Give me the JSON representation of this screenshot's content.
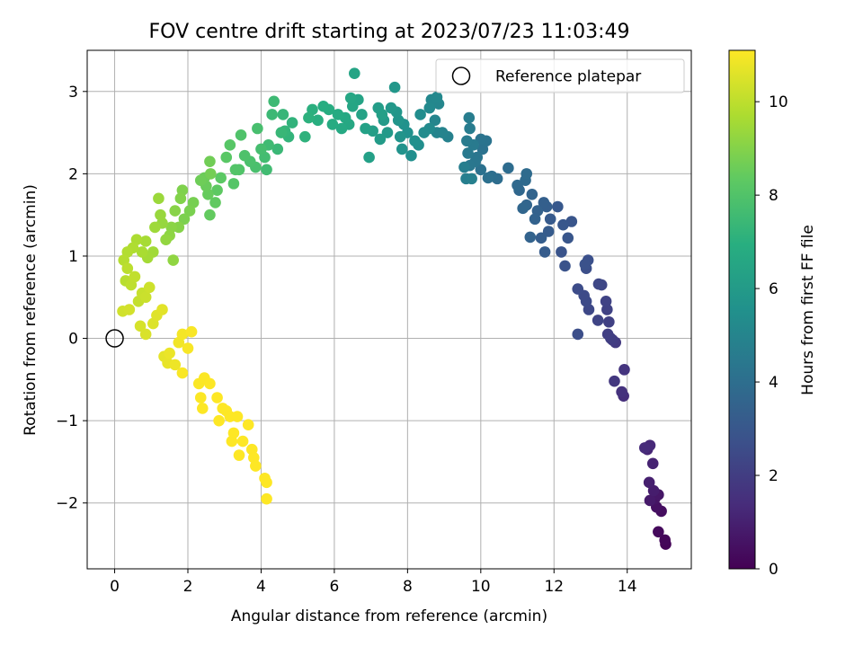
{
  "chart_data": {
    "type": "scatter",
    "title": "FOV centre drift starting at 2023/07/23 11:03:49",
    "xlabel": "Angular distance from reference (arcmin)",
    "ylabel": "Rotation from reference (arcmin)",
    "xlim": [
      -0.75,
      15.75
    ],
    "ylim": [
      -2.8,
      3.5
    ],
    "xticks": [
      0,
      2,
      4,
      6,
      8,
      10,
      12,
      14
    ],
    "yticks": [
      -2,
      -1,
      0,
      1,
      2,
      3
    ],
    "xtick_labels": [
      "0",
      "2",
      "4",
      "6",
      "8",
      "10",
      "12",
      "14"
    ],
    "ytick_labels": [
      "−2",
      "−1",
      "0",
      "1",
      "2",
      "3"
    ],
    "grid": true,
    "colormap": "viridis",
    "colorbar": {
      "label": "Hours from first FF file",
      "range": [
        0,
        11.1
      ],
      "ticks": [
        0,
        2,
        4,
        6,
        8,
        10
      ],
      "tick_labels": [
        "0",
        "2",
        "4",
        "6",
        "8",
        "10"
      ]
    },
    "legend": {
      "position": "top-right",
      "entries": [
        {
          "name": "Reference platepar",
          "marker": "open-circle"
        }
      ]
    },
    "reference_point": {
      "x": 0,
      "y": 0
    },
    "series": [
      {
        "points": [
          [
            15.05,
            -2.5,
            0.1
          ],
          [
            15.03,
            -2.45,
            0.2
          ],
          [
            14.85,
            -2.35,
            0.3
          ],
          [
            14.93,
            -2.1,
            0.4
          ],
          [
            14.8,
            -2.05,
            0.5
          ],
          [
            14.75,
            -1.95,
            0.6
          ],
          [
            14.85,
            -1.9,
            0.7
          ],
          [
            14.62,
            -1.97,
            0.8
          ],
          [
            14.72,
            -1.85,
            0.9
          ],
          [
            14.6,
            -1.75,
            1.0
          ],
          [
            14.7,
            -1.52,
            1.1
          ],
          [
            14.55,
            -1.35,
            1.2
          ],
          [
            14.62,
            -1.3,
            1.3
          ],
          [
            14.48,
            -1.33,
            1.4
          ],
          [
            13.9,
            -0.7,
            1.5
          ],
          [
            13.85,
            -0.65,
            1.6
          ],
          [
            13.92,
            -0.38,
            1.7
          ],
          [
            13.65,
            -0.52,
            1.8
          ],
          [
            13.68,
            -0.05,
            1.9
          ],
          [
            13.6,
            -0.02,
            2.0
          ],
          [
            13.55,
            0.0,
            2.05
          ],
          [
            13.47,
            0.05,
            2.1
          ],
          [
            13.5,
            0.2,
            2.15
          ],
          [
            13.45,
            0.35,
            2.2
          ],
          [
            13.42,
            0.45,
            2.25
          ],
          [
            13.2,
            0.22,
            2.3
          ],
          [
            13.3,
            0.65,
            2.35
          ],
          [
            13.22,
            0.66,
            2.4
          ],
          [
            12.95,
            0.35,
            2.45
          ],
          [
            12.88,
            0.45,
            2.5
          ],
          [
            12.82,
            0.52,
            2.55
          ],
          [
            12.65,
            0.6,
            2.6
          ],
          [
            12.65,
            0.05,
            2.65
          ],
          [
            12.88,
            0.85,
            2.7
          ],
          [
            12.93,
            0.95,
            2.75
          ],
          [
            12.85,
            0.9,
            2.8
          ],
          [
            12.3,
            0.88,
            2.85
          ],
          [
            12.2,
            1.05,
            2.9
          ],
          [
            12.48,
            1.42,
            2.95
          ],
          [
            12.38,
            1.22,
            3.0
          ],
          [
            12.25,
            1.38,
            3.05
          ],
          [
            12.1,
            1.6,
            3.1
          ],
          [
            11.9,
            1.45,
            3.15
          ],
          [
            11.85,
            1.3,
            3.2
          ],
          [
            11.75,
            1.05,
            3.25
          ],
          [
            11.65,
            1.22,
            3.3
          ],
          [
            11.8,
            1.6,
            3.35
          ],
          [
            11.72,
            1.65,
            3.4
          ],
          [
            11.55,
            1.55,
            3.45
          ],
          [
            11.48,
            1.45,
            3.5
          ],
          [
            11.35,
            1.23,
            3.55
          ],
          [
            11.4,
            1.75,
            3.6
          ],
          [
            11.25,
            1.62,
            3.65
          ],
          [
            11.15,
            1.58,
            3.7
          ],
          [
            11.05,
            1.8,
            3.75
          ],
          [
            11.0,
            1.86,
            3.8
          ],
          [
            11.22,
            1.92,
            3.85
          ],
          [
            11.25,
            2.0,
            3.9
          ],
          [
            10.75,
            2.07,
            3.95
          ],
          [
            10.45,
            1.94,
            4.0
          ],
          [
            10.3,
            1.97,
            4.05
          ],
          [
            10.2,
            1.95,
            4.1
          ],
          [
            10.0,
            2.05,
            4.15
          ],
          [
            10.05,
            2.3,
            4.2
          ],
          [
            10.15,
            2.4,
            4.25
          ],
          [
            10.0,
            2.42,
            4.3
          ],
          [
            9.9,
            2.2,
            4.35
          ],
          [
            9.85,
            2.15,
            4.4
          ],
          [
            9.7,
            2.1,
            4.45
          ],
          [
            9.65,
            2.25,
            4.5
          ],
          [
            9.8,
            2.35,
            4.55
          ],
          [
            9.62,
            2.4,
            4.6
          ],
          [
            9.7,
            2.55,
            4.65
          ],
          [
            9.68,
            2.68,
            4.7
          ],
          [
            9.55,
            2.08,
            4.75
          ],
          [
            9.6,
            1.94,
            4.8
          ],
          [
            9.75,
            1.94,
            4.85
          ],
          [
            9.1,
            2.45,
            4.9
          ],
          [
            8.95,
            2.5,
            4.95
          ],
          [
            8.8,
            2.5,
            5.0
          ],
          [
            8.75,
            2.65,
            5.05
          ],
          [
            8.85,
            2.85,
            5.1
          ],
          [
            8.65,
            2.9,
            5.15
          ],
          [
            8.8,
            2.93,
            5.2
          ],
          [
            8.6,
            2.8,
            5.25
          ],
          [
            8.6,
            2.55,
            5.3
          ],
          [
            8.45,
            2.5,
            5.35
          ],
          [
            8.35,
            2.72,
            5.4
          ],
          [
            8.3,
            2.35,
            5.45
          ],
          [
            8.1,
            2.22,
            5.5
          ],
          [
            8.2,
            2.4,
            5.55
          ],
          [
            8.0,
            2.5,
            5.6
          ],
          [
            7.9,
            2.6,
            5.65
          ],
          [
            7.85,
            2.3,
            5.7
          ],
          [
            7.8,
            2.45,
            5.75
          ],
          [
            7.75,
            2.65,
            5.8
          ],
          [
            7.7,
            2.75,
            5.85
          ],
          [
            7.65,
            3.05,
            5.9
          ],
          [
            7.55,
            2.8,
            5.95
          ],
          [
            7.45,
            2.5,
            6.0
          ],
          [
            7.35,
            2.65,
            6.05
          ],
          [
            7.25,
            2.42,
            6.1
          ],
          [
            7.2,
            2.8,
            6.15
          ],
          [
            7.05,
            2.52,
            6.2
          ],
          [
            7.3,
            2.72,
            6.25
          ],
          [
            6.95,
            2.2,
            6.3
          ],
          [
            6.85,
            2.55,
            6.35
          ],
          [
            6.75,
            2.72,
            6.4
          ],
          [
            6.65,
            2.9,
            6.45
          ],
          [
            6.55,
            3.22,
            6.5
          ],
          [
            6.5,
            2.82,
            6.55
          ],
          [
            6.45,
            2.92,
            6.6
          ],
          [
            6.4,
            2.6,
            6.65
          ],
          [
            6.3,
            2.68,
            6.7
          ],
          [
            6.2,
            2.55,
            6.75
          ],
          [
            6.1,
            2.72,
            6.8
          ],
          [
            5.95,
            2.6,
            6.85
          ],
          [
            5.85,
            2.78,
            6.9
          ],
          [
            5.7,
            2.82,
            6.95
          ],
          [
            5.55,
            2.65,
            7.0
          ],
          [
            5.4,
            2.78,
            7.05
          ],
          [
            5.3,
            2.68,
            7.1
          ],
          [
            5.2,
            2.45,
            7.15
          ],
          [
            4.85,
            2.62,
            7.2
          ],
          [
            4.75,
            2.45,
            7.25
          ],
          [
            4.65,
            2.52,
            7.3
          ],
          [
            4.6,
            2.72,
            7.35
          ],
          [
            4.55,
            2.5,
            7.4
          ],
          [
            4.45,
            2.3,
            7.45
          ],
          [
            4.3,
            2.72,
            7.5
          ],
          [
            4.35,
            2.88,
            7.55
          ],
          [
            4.2,
            2.35,
            7.6
          ],
          [
            4.15,
            2.05,
            7.65
          ],
          [
            4.1,
            2.2,
            7.7
          ],
          [
            4.0,
            2.3,
            7.75
          ],
          [
            3.9,
            2.55,
            7.8
          ],
          [
            3.85,
            2.08,
            7.85
          ],
          [
            3.7,
            2.15,
            7.9
          ],
          [
            3.55,
            2.22,
            7.95
          ],
          [
            3.45,
            2.47,
            8.0
          ],
          [
            3.4,
            2.05,
            8.05
          ],
          [
            3.3,
            2.05,
            8.1
          ],
          [
            3.25,
            1.88,
            8.15
          ],
          [
            3.15,
            2.35,
            8.2
          ],
          [
            3.05,
            2.2,
            8.25
          ],
          [
            2.9,
            1.95,
            8.3
          ],
          [
            2.8,
            1.8,
            8.35
          ],
          [
            2.75,
            1.65,
            8.4
          ],
          [
            2.6,
            1.5,
            8.45
          ],
          [
            2.55,
            1.75,
            8.5
          ],
          [
            2.5,
            1.85,
            8.55
          ],
          [
            2.45,
            1.95,
            8.6
          ],
          [
            2.35,
            1.92,
            8.65
          ],
          [
            2.6,
            2.15,
            8.7
          ],
          [
            2.62,
            2.0,
            8.75
          ],
          [
            2.15,
            1.65,
            8.8
          ],
          [
            2.05,
            1.55,
            8.85
          ],
          [
            1.9,
            1.45,
            8.9
          ],
          [
            1.85,
            1.8,
            8.95
          ],
          [
            1.8,
            1.7,
            9.0
          ],
          [
            1.75,
            1.35,
            9.05
          ],
          [
            1.65,
            1.55,
            9.1
          ],
          [
            1.55,
            1.35,
            9.15
          ],
          [
            1.5,
            1.25,
            9.2
          ],
          [
            1.6,
            0.95,
            9.25
          ],
          [
            1.4,
            1.2,
            9.3
          ],
          [
            1.3,
            1.4,
            9.35
          ],
          [
            1.25,
            1.5,
            9.4
          ],
          [
            1.2,
            1.7,
            9.45
          ],
          [
            1.1,
            1.35,
            9.5
          ],
          [
            1.05,
            1.05,
            9.55
          ],
          [
            0.9,
            0.98,
            9.6
          ],
          [
            0.85,
            1.18,
            9.65
          ],
          [
            0.75,
            1.05,
            9.7
          ],
          [
            0.6,
            1.2,
            9.75
          ],
          [
            0.5,
            1.1,
            9.8
          ],
          [
            0.35,
            1.05,
            9.85
          ],
          [
            0.25,
            0.95,
            9.9
          ],
          [
            0.3,
            0.7,
            9.95
          ],
          [
            0.35,
            0.85,
            10.0
          ],
          [
            0.45,
            0.65,
            10.05
          ],
          [
            0.55,
            0.75,
            10.1
          ],
          [
            0.65,
            0.45,
            10.15
          ],
          [
            0.75,
            0.55,
            10.2
          ],
          [
            0.85,
            0.5,
            10.25
          ],
          [
            0.95,
            0.62,
            10.3
          ],
          [
            0.22,
            0.33,
            10.35
          ],
          [
            0.4,
            0.35,
            10.4
          ],
          [
            0.7,
            0.15,
            10.45
          ],
          [
            0.85,
            0.05,
            10.5
          ],
          [
            1.05,
            0.18,
            10.55
          ],
          [
            1.15,
            0.28,
            10.6
          ],
          [
            1.3,
            0.35,
            10.65
          ],
          [
            1.35,
            -0.22,
            10.7
          ],
          [
            1.45,
            -0.3,
            10.75
          ],
          [
            1.5,
            -0.18,
            10.8
          ],
          [
            1.65,
            -0.32,
            10.85
          ],
          [
            1.75,
            -0.05,
            10.9
          ],
          [
            1.85,
            0.05,
            10.95
          ],
          [
            2.0,
            -0.12,
            11.0
          ],
          [
            2.1,
            0.08,
            11.02
          ],
          [
            1.85,
            -0.42,
            11.04
          ],
          [
            2.3,
            -0.55,
            11.05
          ],
          [
            2.45,
            -0.48,
            11.06
          ],
          [
            2.35,
            -0.72,
            11.07
          ],
          [
            2.4,
            -0.85,
            11.08
          ],
          [
            2.6,
            -0.55,
            11.09
          ],
          [
            2.8,
            -0.72,
            11.1
          ],
          [
            2.95,
            -0.85,
            11.1
          ],
          [
            3.05,
            -0.88,
            11.1
          ],
          [
            2.85,
            -1.0,
            11.1
          ],
          [
            3.15,
            -0.95,
            11.1
          ],
          [
            3.35,
            -0.95,
            11.1
          ],
          [
            3.25,
            -1.15,
            11.1
          ],
          [
            3.2,
            -1.25,
            11.1
          ],
          [
            3.4,
            -1.42,
            11.1
          ],
          [
            3.5,
            -1.25,
            11.1
          ],
          [
            3.65,
            -1.05,
            11.1
          ],
          [
            3.75,
            -1.35,
            11.1
          ],
          [
            3.8,
            -1.45,
            11.1
          ],
          [
            3.85,
            -1.55,
            11.1
          ],
          [
            4.1,
            -1.7,
            11.1
          ],
          [
            4.15,
            -1.75,
            11.1
          ],
          [
            4.15,
            -1.95,
            11.1
          ]
        ]
      }
    ]
  }
}
